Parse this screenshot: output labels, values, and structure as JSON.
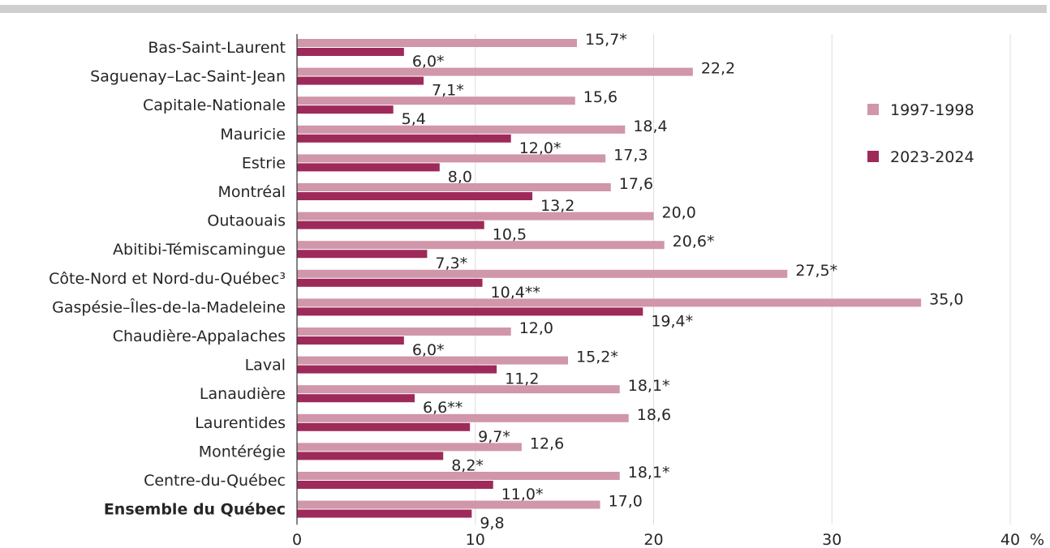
{
  "chart_data": {
    "type": "bar",
    "orientation": "horizontal",
    "categories": [
      "Bas-Saint-Laurent",
      "Saguenay–Lac-Saint-Jean",
      "Capitale-Nationale",
      "Mauricie",
      "Estrie",
      "Montréal",
      "Outaouais",
      "Abitibi-Témiscamingue",
      "Côte-Nord et Nord-du-Québec³",
      "Gaspésie–Îles-de-la-Madeleine",
      "Chaudière-Appalaches",
      "Laval",
      "Lanaudière",
      "Laurentides",
      "Montérégie",
      "Centre-du-Québec",
      "Ensemble du Québec"
    ],
    "bold_categories": [
      "Ensemble du Québec"
    ],
    "series": [
      {
        "name": "1997-1998",
        "color": "#d096aa",
        "values": [
          15.7,
          22.2,
          15.6,
          18.4,
          17.3,
          17.6,
          20.0,
          20.6,
          27.5,
          35.0,
          12.0,
          15.2,
          18.1,
          18.6,
          12.6,
          18.1,
          17.0
        ],
        "labels": [
          "15,7*",
          "22,2",
          "15,6",
          "18,4",
          "17,3",
          "17,6",
          "20,0",
          "20,6*",
          "27,5*",
          "35,0",
          "12,0",
          "15,2*",
          "18,1*",
          "18,6",
          "12,6",
          "18,1*",
          "17,0"
        ]
      },
      {
        "name": "2023-2024",
        "color": "#9e2a5a",
        "values": [
          6.0,
          7.1,
          5.4,
          12.0,
          8.0,
          13.2,
          10.5,
          7.3,
          10.4,
          19.4,
          6.0,
          11.2,
          6.6,
          9.7,
          8.2,
          11.0,
          9.8
        ],
        "labels": [
          "6,0*",
          "7,1*",
          "5,4",
          "12,0*",
          "8,0",
          "13,2",
          "10,5",
          "7,3*",
          "10,4**",
          "19,4*",
          "6,0*",
          "11,2",
          "6,6**",
          "9,7*",
          "8,2*",
          "11,0*",
          "9,8"
        ]
      }
    ],
    "xlim": [
      0,
      40
    ],
    "xticks": [
      0,
      10,
      20,
      30,
      40
    ],
    "xtick_labels": [
      "0",
      "10",
      "20",
      "30",
      "40"
    ],
    "xunit": "%",
    "grid": "vertical",
    "legend_position": "right"
  }
}
